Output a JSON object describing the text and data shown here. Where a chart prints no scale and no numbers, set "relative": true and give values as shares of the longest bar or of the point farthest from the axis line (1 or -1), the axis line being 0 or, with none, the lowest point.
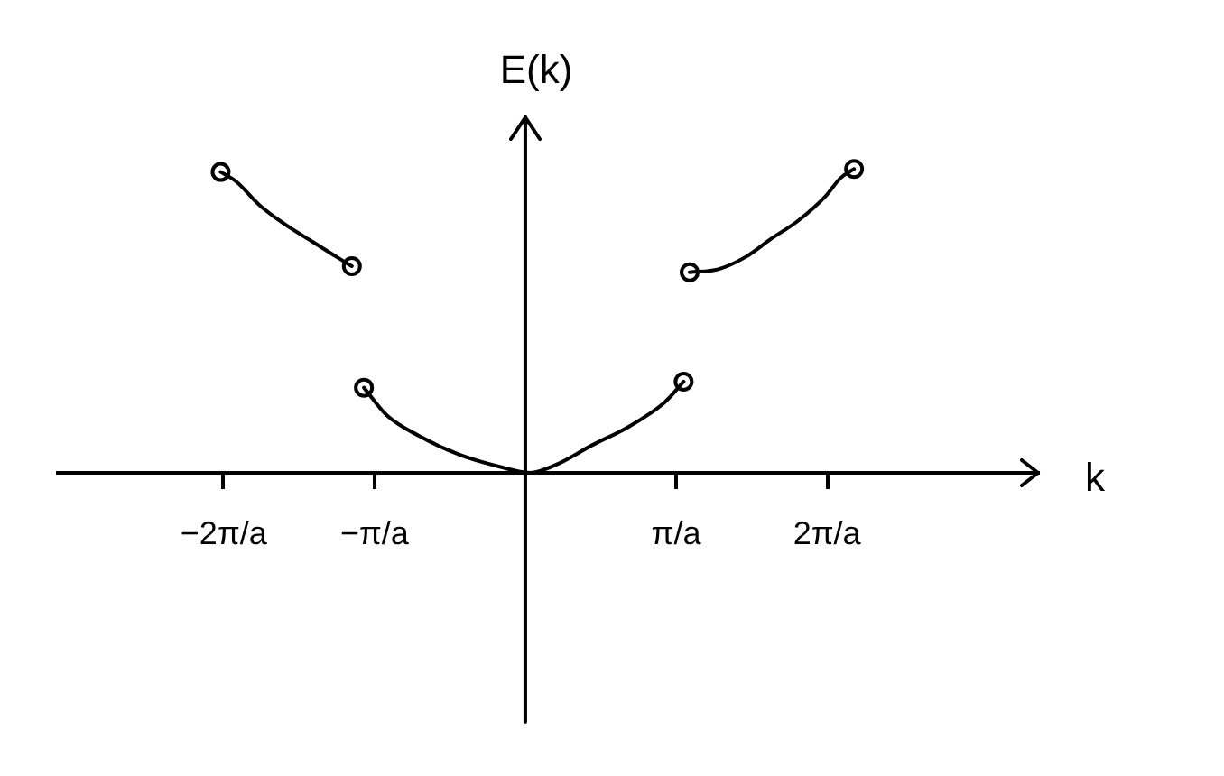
{
  "chart_data": {
    "type": "line",
    "relative": true,
    "xlabel": "k",
    "ylabel": "E(k)",
    "xlim": [
      -3.1,
      3.4
    ],
    "xticks": [
      {
        "value": -2,
        "label": "−2π/a"
      },
      {
        "value": -1,
        "label": "−π/a"
      },
      {
        "value": 1,
        "label": "π/a"
      },
      {
        "value": 2,
        "label": "2π/a"
      }
    ],
    "grid": false,
    "legend": false,
    "line_style": "solid",
    "series": [
      {
        "color": "#000000",
        "marker": "none",
        "x": [
          -2.02,
          -1.92,
          -1.76,
          -1.6,
          -1.41,
          -1.25,
          -1.15
        ],
        "values": [
          0.99,
          0.96,
          0.88,
          0.82,
          0.76,
          0.71,
          0.68
        ]
      },
      {
        "color": "#000000",
        "marker": "none",
        "x": [
          -1.07,
          -0.92,
          -0.7,
          -0.44,
          -0.17,
          0.03,
          0.22,
          0.44,
          0.68,
          0.92,
          1.05
        ],
        "values": [
          0.28,
          0.19,
          0.12,
          0.06,
          0.02,
          0,
          0.03,
          0.09,
          0.15,
          0.23,
          0.3
        ]
      },
      {
        "color": "#000000",
        "marker": "none",
        "x": [
          1.09,
          1.28,
          1.46,
          1.63,
          1.81,
          1.99,
          2.09,
          2.18
        ],
        "values": [
          0.66,
          0.67,
          0.71,
          0.77,
          0.83,
          0.91,
          0.97,
          1
        ]
      },
      {
        "type": "scatter",
        "color": "#000000",
        "marker": "circle",
        "x": [
          -2.02,
          -1.15,
          -1.07,
          1.05,
          1.09,
          2.18
        ],
        "values": [
          0.99,
          0.68,
          0.28,
          0.3,
          0.66,
          1
        ]
      }
    ]
  }
}
